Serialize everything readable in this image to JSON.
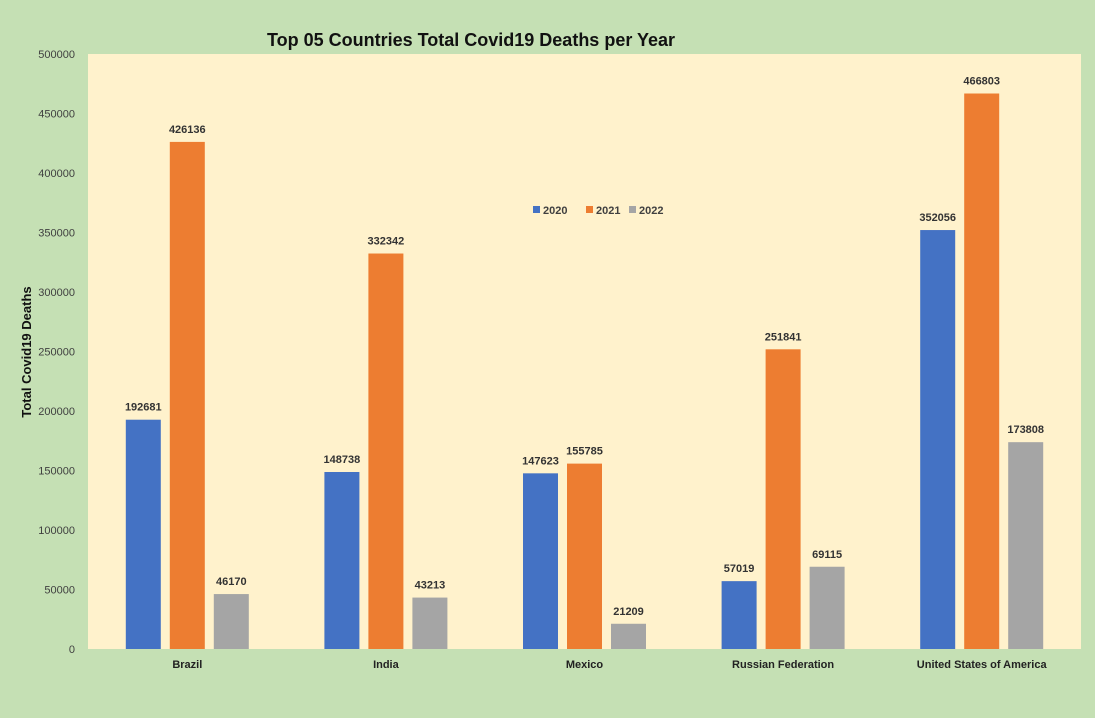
{
  "chart_data": {
    "type": "bar",
    "title": "Top 05 Countries Total Covid19 Deaths per Year",
    "xlabel": "",
    "ylabel": "Total Covid19 Deaths",
    "categories": [
      "Brazil",
      "India",
      "Mexico",
      "Russian Federation",
      "United States of America"
    ],
    "series": [
      {
        "name": "2020",
        "color": "#4472c4",
        "values": [
          192681,
          148738,
          147623,
          57019,
          352056
        ]
      },
      {
        "name": "2021",
        "color": "#ed7d31",
        "values": [
          426136,
          332342,
          155785,
          251841,
          466803
        ]
      },
      {
        "name": "2022",
        "color": "#a5a5a5",
        "values": [
          46170,
          43213,
          21209,
          69115,
          173808
        ]
      }
    ],
    "ylim": [
      0,
      500000
    ],
    "yticks": [
      "0",
      "50000",
      "100000",
      "150000",
      "200000",
      "250000",
      "300000",
      "350000",
      "400000",
      "450000",
      "500000"
    ],
    "grid": false,
    "legend": "top-center",
    "data_labels": true,
    "colors": {
      "page_bg": "#c5e0b4",
      "plot_bg": "#fff2cc"
    }
  }
}
